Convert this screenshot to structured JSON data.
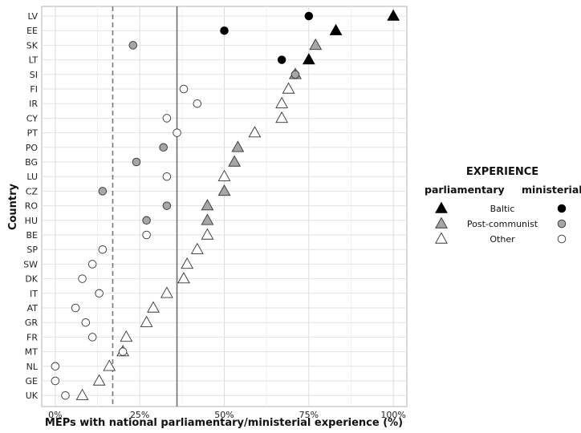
{
  "chart_data": {
    "type": "scatter",
    "title": "",
    "xlabel": "MEPs with national parliamentary/ministerial experience (%)",
    "ylabel": "Country",
    "xlim": [
      -0.04,
      1.04
    ],
    "x_ticks": [
      {
        "value": 0,
        "label": "0%"
      },
      {
        "value": 0.25,
        "label": "25%"
      },
      {
        "value": 0.5,
        "label": "50%"
      },
      {
        "value": 0.75,
        "label": "75%"
      },
      {
        "value": 1.0,
        "label": "100%"
      }
    ],
    "grid": true,
    "categories": [
      "LV",
      "EE",
      "SK",
      "LT",
      "SI",
      "FI",
      "IR",
      "CY",
      "PT",
      "PO",
      "BG",
      "LU",
      "CZ",
      "RO",
      "HU",
      "BE",
      "SP",
      "SW",
      "DK",
      "IT",
      "AT",
      "GR",
      "FR",
      "MT",
      "NL",
      "GE",
      "UK"
    ],
    "reference_lines": [
      {
        "style": "dashed",
        "x": 0.17
      },
      {
        "style": "solid",
        "x": 0.36
      }
    ],
    "series": [
      {
        "variable": "parliamentary",
        "marker": "triangle",
        "points": [
          {
            "country": "LV",
            "x": 1.0,
            "group": "Baltic"
          },
          {
            "country": "EE",
            "x": 0.83,
            "group": "Baltic"
          },
          {
            "country": "SK",
            "x": 0.77,
            "group": "Post-communist"
          },
          {
            "country": "LT",
            "x": 0.75,
            "group": "Baltic"
          },
          {
            "country": "SI",
            "x": 0.71,
            "group": "Post-communist"
          },
          {
            "country": "FI",
            "x": 0.69,
            "group": "Other"
          },
          {
            "country": "IR",
            "x": 0.67,
            "group": "Other"
          },
          {
            "country": "CY",
            "x": 0.67,
            "group": "Other"
          },
          {
            "country": "PT",
            "x": 0.59,
            "group": "Other"
          },
          {
            "country": "PO",
            "x": 0.54,
            "group": "Post-communist"
          },
          {
            "country": "BG",
            "x": 0.53,
            "group": "Post-communist"
          },
          {
            "country": "LU",
            "x": 0.5,
            "group": "Other"
          },
          {
            "country": "CZ",
            "x": 0.5,
            "group": "Post-communist"
          },
          {
            "country": "RO",
            "x": 0.45,
            "group": "Post-communist"
          },
          {
            "country": "HU",
            "x": 0.45,
            "group": "Post-communist"
          },
          {
            "country": "BE",
            "x": 0.45,
            "group": "Other"
          },
          {
            "country": "SP",
            "x": 0.42,
            "group": "Other"
          },
          {
            "country": "SW",
            "x": 0.39,
            "group": "Other"
          },
          {
            "country": "DK",
            "x": 0.38,
            "group": "Other"
          },
          {
            "country": "IT",
            "x": 0.33,
            "group": "Other"
          },
          {
            "country": "AT",
            "x": 0.29,
            "group": "Other"
          },
          {
            "country": "GR",
            "x": 0.27,
            "group": "Other"
          },
          {
            "country": "FR",
            "x": 0.21,
            "group": "Other"
          },
          {
            "country": "MT",
            "x": 0.2,
            "group": "Other"
          },
          {
            "country": "NL",
            "x": 0.16,
            "group": "Other"
          },
          {
            "country": "GE",
            "x": 0.13,
            "group": "Other"
          },
          {
            "country": "UK",
            "x": 0.08,
            "group": "Other"
          }
        ]
      },
      {
        "variable": "ministerial",
        "marker": "circle",
        "points": [
          {
            "country": "LV",
            "x": 0.75,
            "group": "Baltic"
          },
          {
            "country": "EE",
            "x": 0.5,
            "group": "Baltic"
          },
          {
            "country": "SK",
            "x": 0.23,
            "group": "Post-communist"
          },
          {
            "country": "LT",
            "x": 0.67,
            "group": "Baltic"
          },
          {
            "country": "SI",
            "x": 0.71,
            "group": "Post-communist"
          },
          {
            "country": "FI",
            "x": 0.38,
            "group": "Other"
          },
          {
            "country": "IR",
            "x": 0.42,
            "group": "Other"
          },
          {
            "country": "CY",
            "x": 0.33,
            "group": "Other"
          },
          {
            "country": "PT",
            "x": 0.36,
            "group": "Other"
          },
          {
            "country": "PO",
            "x": 0.32,
            "group": "Post-communist"
          },
          {
            "country": "BG",
            "x": 0.24,
            "group": "Post-communist"
          },
          {
            "country": "LU",
            "x": 0.33,
            "group": "Other"
          },
          {
            "country": "CZ",
            "x": 0.14,
            "group": "Post-communist"
          },
          {
            "country": "RO",
            "x": 0.33,
            "group": "Post-communist"
          },
          {
            "country": "HU",
            "x": 0.27,
            "group": "Post-communist"
          },
          {
            "country": "BE",
            "x": 0.27,
            "group": "Other"
          },
          {
            "country": "SP",
            "x": 0.14,
            "group": "Other"
          },
          {
            "country": "SW",
            "x": 0.11,
            "group": "Other"
          },
          {
            "country": "DK",
            "x": 0.08,
            "group": "Other"
          },
          {
            "country": "IT",
            "x": 0.13,
            "group": "Other"
          },
          {
            "country": "AT",
            "x": 0.06,
            "group": "Other"
          },
          {
            "country": "GR",
            "x": 0.09,
            "group": "Other"
          },
          {
            "country": "FR",
            "x": 0.11,
            "group": "Other"
          },
          {
            "country": "MT",
            "x": 0.2,
            "group": "Other"
          },
          {
            "country": "NL",
            "x": 0.0,
            "group": "Other"
          },
          {
            "country": "GE",
            "x": 0.0,
            "group": "Other"
          },
          {
            "country": "UK",
            "x": 0.03,
            "group": "Other"
          }
        ]
      }
    ],
    "group_fills": {
      "Baltic": "#000000",
      "Post-communist": "#a6a6a6",
      "Other": "#ffffff"
    },
    "legend": {
      "placement": "right",
      "title": "EXPERIENCE",
      "left_header": "parliamentary",
      "right_header": "ministerial",
      "entries": [
        "Baltic",
        "Post-communist",
        "Other"
      ]
    }
  }
}
